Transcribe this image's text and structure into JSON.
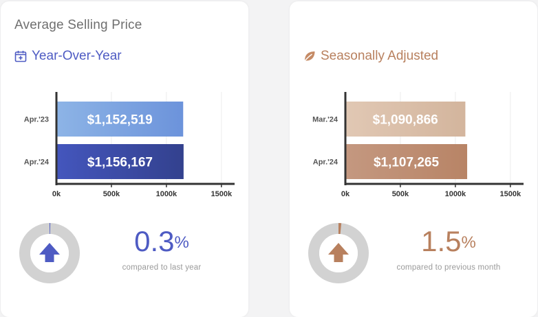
{
  "title": "Average Selling Price",
  "colors": {
    "yoy_accent": "#4e5bc3",
    "seasonal_accent": "#b8805e",
    "bar_apr23": "#7fa6df",
    "bar_apr24": "#3f4fae",
    "bar_mar24": "#dcc1aa",
    "bar_apr24_seasonal": "#be8f71",
    "donut_track": "#d2d2d2",
    "axis": "#333333"
  },
  "panels": [
    {
      "subtitle": "Year-Over-Year",
      "icon": "calendar-plus-icon",
      "change_value": "0.3",
      "change_unit": "%",
      "change_caption": "compared to last year"
    },
    {
      "subtitle": "Seasonally Adjusted",
      "icon": "leaf-icon",
      "change_value": "1.5",
      "change_unit": "%",
      "change_caption": "compared to previous month"
    }
  ],
  "chart_data": [
    {
      "type": "bar",
      "orientation": "horizontal",
      "categories": [
        "Apr.'23",
        "Apr.'24"
      ],
      "values": [
        1152519,
        1156167
      ],
      "value_labels": [
        "$1,152,519",
        "$1,156,167"
      ],
      "ticks": [
        "0k",
        "500k",
        "1000k",
        "1500k"
      ],
      "tick_values": [
        0,
        500000,
        1000000,
        1500000
      ],
      "xlim": [
        0,
        1620000
      ],
      "grid": true,
      "percent_change": 0.3
    },
    {
      "type": "bar",
      "orientation": "horizontal",
      "categories": [
        "Mar.'24",
        "Apr.'24"
      ],
      "values": [
        1090866,
        1107265
      ],
      "value_labels": [
        "$1,090,866",
        "$1,107,265"
      ],
      "ticks": [
        "0k",
        "500k",
        "1000k",
        "1500k"
      ],
      "tick_values": [
        0,
        500000,
        1000000,
        1500000
      ],
      "xlim": [
        0,
        1620000
      ],
      "grid": true,
      "percent_change": 1.5
    }
  ]
}
